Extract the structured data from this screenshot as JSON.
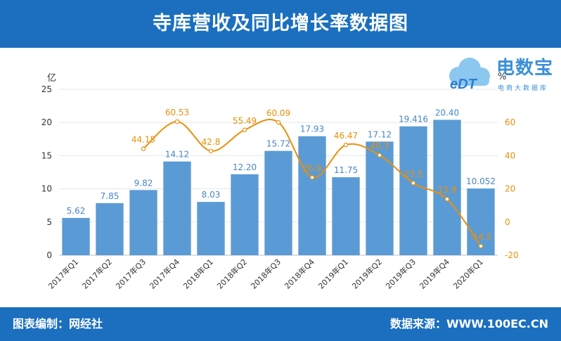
{
  "header": {
    "title": "寺库营收及同比增长率数据图"
  },
  "logo": {
    "brand": "电数宝",
    "sub": "电商大数据库",
    "mark": "eDT",
    "icon": "cloud-icon"
  },
  "footer": {
    "left": "图表编制：网经社",
    "right": "数据来源：WWW.100EC.CN"
  },
  "colors": {
    "bar": "#5b9bd5",
    "line": "#e8900a",
    "header": "#1b6fbe",
    "bar_label": "#4a86c5"
  },
  "chart_data": {
    "type": "bar",
    "categories": [
      "2017年Q1",
      "2017年Q2",
      "2017年Q3",
      "2017年Q4",
      "2018年Q1",
      "2018年Q2",
      "2018年Q3",
      "2018年Q4",
      "2019年Q1",
      "2019年Q2",
      "2019年Q3",
      "2019年Q4",
      "2020年Q1"
    ],
    "series": [
      {
        "type": "bar",
        "axis": "left",
        "values": [
          5.62,
          7.85,
          9.82,
          14.12,
          8.03,
          12.2,
          15.72,
          17.93,
          11.75,
          17.12,
          19.416,
          20.4,
          10.052
        ],
        "labels": [
          "5.62",
          "7.85",
          "9.82",
          "14.12",
          "8.03",
          "12.20",
          "15.72",
          "17.93",
          "11.75",
          "17.12",
          "19.416",
          "20.40",
          "10.052"
        ]
      },
      {
        "type": "line",
        "axis": "right",
        "values": [
          null,
          null,
          44.15,
          60.53,
          42.8,
          55.49,
          60.09,
          26.9,
          46.47,
          40.3,
          23.5,
          13.8,
          -14.5
        ],
        "labels": [
          "",
          "",
          "44.15",
          "60.53",
          "42.8",
          "55.49",
          "60.09",
          "26.9",
          "46.47",
          "40.3",
          "23.5",
          "13.8",
          "-14.5"
        ]
      }
    ],
    "ylabel": "亿",
    "y2label": "%",
    "ylim": [
      0,
      25
    ],
    "y2lim": [
      -20,
      80
    ],
    "yticks": [
      0,
      5,
      10,
      15,
      20,
      25
    ],
    "y2ticks": [
      -20,
      0,
      20,
      40,
      60
    ],
    "grid": true
  }
}
